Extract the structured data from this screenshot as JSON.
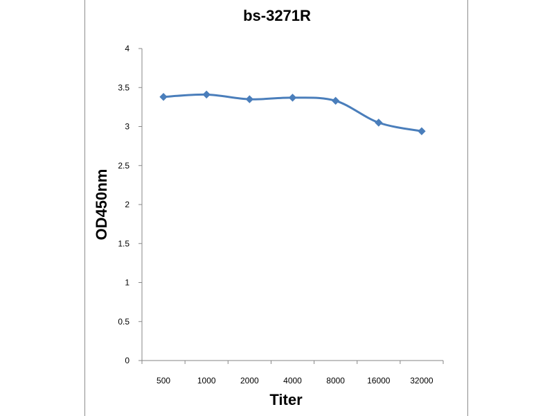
{
  "chart_data": {
    "type": "line",
    "title": "bs-3271R",
    "xlabel": "Titer",
    "ylabel": "OD450nm",
    "categories": [
      "500",
      "1000",
      "2000",
      "4000",
      "8000",
      "16000",
      "32000"
    ],
    "series": [
      {
        "values": [
          3.38,
          3.41,
          3.35,
          3.37,
          3.33,
          3.05,
          2.94
        ],
        "color": "#4a7ebb",
        "marker": "diamond",
        "smooth": true
      }
    ],
    "ylim": [
      0,
      4
    ],
    "yticks": [
      "0",
      "0.5",
      "1",
      "1.5",
      "2",
      "2.5",
      "3",
      "3.5",
      "4"
    ],
    "grid": false,
    "legend": "none"
  }
}
